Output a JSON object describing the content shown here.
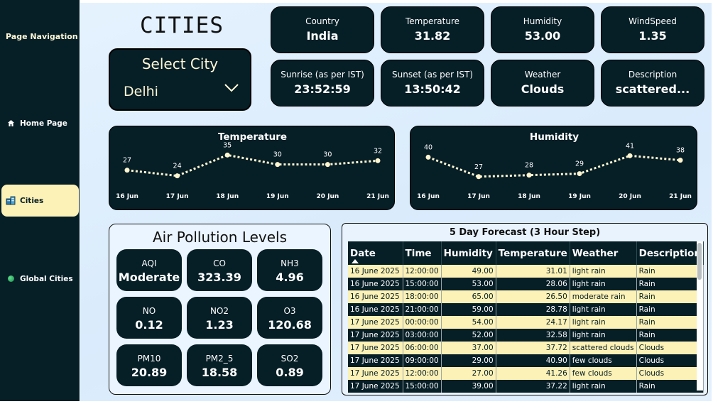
{
  "sidebar": {
    "title": "Page Navigation",
    "items": [
      {
        "label": "Home Page",
        "icon": "home-icon"
      },
      {
        "label": "Cities",
        "icon": "buildings-icon",
        "active": true
      },
      {
        "label": "Global Cities",
        "icon": "globe-icon"
      }
    ]
  },
  "header": {
    "title": "CITIES"
  },
  "city_select": {
    "label": "Select City",
    "value": "Delhi"
  },
  "kpis": [
    {
      "label": "Country",
      "value": "India"
    },
    {
      "label": "Temperature",
      "value": "31.82"
    },
    {
      "label": "Humidity",
      "value": "53.00"
    },
    {
      "label": "WindSpeed",
      "value": "1.35"
    },
    {
      "label": "Sunrise (as per IST)",
      "value": "23:52:59"
    },
    {
      "label": "Sunset (as per IST)",
      "value": "13:50:42"
    },
    {
      "label": "Weather",
      "value": "Clouds"
    },
    {
      "label": "Description",
      "value": "scattered..."
    }
  ],
  "chart_data": [
    {
      "type": "line",
      "title": "Temperature",
      "categories": [
        "16 Jun",
        "17 Jun",
        "18 Jun",
        "19 Jun",
        "20 Jun",
        "21 Jun"
      ],
      "values": [
        27,
        24,
        35,
        30,
        30,
        32
      ],
      "ylim": [
        22,
        37
      ],
      "line_color": "#fff6d0"
    },
    {
      "type": "line",
      "title": "Humidity",
      "categories": [
        "16 Jun",
        "17 Jun",
        "18 Jun",
        "19 Jun",
        "20 Jun",
        "21 Jun"
      ],
      "values": [
        40,
        27,
        28,
        29,
        41,
        38
      ],
      "ylim": [
        25,
        44
      ],
      "line_color": "#fff6d0"
    }
  ],
  "air_pollution": {
    "title": "Air Pollution Levels",
    "items": [
      {
        "label": "AQI",
        "value": "Moderate"
      },
      {
        "label": "CO",
        "value": "323.39"
      },
      {
        "label": "NH3",
        "value": "4.96"
      },
      {
        "label": "NO",
        "value": "0.12"
      },
      {
        "label": "NO2",
        "value": "1.23"
      },
      {
        "label": "O3",
        "value": "120.68"
      },
      {
        "label": "PM10",
        "value": "20.89"
      },
      {
        "label": "PM2_5",
        "value": "18.58"
      },
      {
        "label": "SO2",
        "value": "0.89"
      }
    ]
  },
  "forecast": {
    "title": "5 Day Forecast (3 Hour Step)",
    "columns": [
      "Date",
      "Time",
      "Humidity",
      "Temperature",
      "Weather",
      "Description"
    ],
    "rows": [
      [
        "16 June 2025",
        "12:00:00",
        "49.00",
        "31.01",
        "light rain",
        "Rain"
      ],
      [
        "16 June 2025",
        "15:00:00",
        "53.00",
        "28.06",
        "light rain",
        "Rain"
      ],
      [
        "16 June 2025",
        "18:00:00",
        "65.00",
        "26.50",
        "moderate rain",
        "Rain"
      ],
      [
        "16 June 2025",
        "21:00:00",
        "59.00",
        "28.78",
        "light rain",
        "Rain"
      ],
      [
        "17 June 2025",
        "00:00:00",
        "54.00",
        "24.17",
        "light rain",
        "Rain"
      ],
      [
        "17 June 2025",
        "03:00:00",
        "52.00",
        "32.58",
        "light rain",
        "Rain"
      ],
      [
        "17 June 2025",
        "06:00:00",
        "37.00",
        "37.72",
        "scattered clouds",
        "Clouds"
      ],
      [
        "17 June 2025",
        "09:00:00",
        "29.00",
        "40.90",
        "few clouds",
        "Clouds"
      ],
      [
        "17 June 2025",
        "12:00:00",
        "27.00",
        "41.26",
        "few clouds",
        "Clouds"
      ],
      [
        "17 June 2025",
        "15:00:00",
        "39.00",
        "37.22",
        "light rain",
        "Rain"
      ]
    ]
  }
}
